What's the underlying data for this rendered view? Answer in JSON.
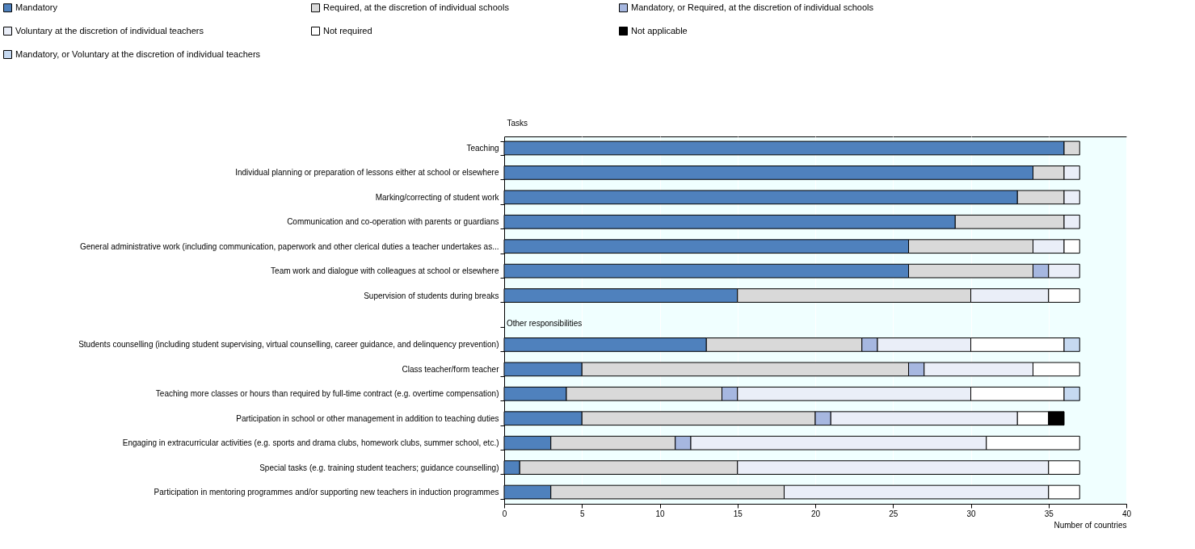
{
  "chart_data": {
    "type": "bar",
    "orientation": "horizontal",
    "stacked": true,
    "categories": [
      "Teaching",
      "Individual planning or preparation of lessons either at school or elsewhere",
      "Marking/correcting of student work",
      "Communication and co-operation with parents or guardians",
      "General administrative work (including communication, paperwork and other clerical duties a teacher undertakes as...",
      "Team work and dialogue with colleagues at school or elsewhere",
      "Supervision of students during breaks",
      null,
      "Students counselling (including student supervising, virtual counselling, career guidance, and delinquency prevention)",
      "Class teacher/form teacher",
      "Teaching more classes or hours than required by full-time contract (e.g. overtime compensation)",
      "Participation in school or other management in addition to teaching duties",
      "Engaging in extracurricular activities (e.g. sports and drama clubs, homework clubs, summer school, etc.)",
      "Special tasks (e.g. training student teachers; guidance counselling)",
      "Participation in mentoring programmes and/or supporting new teachers in induction programmes"
    ],
    "series": [
      {
        "name": "Mandatory",
        "color": "#4f81bd",
        "values": [
          36,
          34,
          33,
          29,
          26,
          26,
          15,
          null,
          13,
          5,
          4,
          5,
          3,
          1,
          3
        ]
      },
      {
        "name": "Required, at the discretion of individual schools",
        "color": "#d9d9d9",
        "values": [
          1,
          2,
          3,
          7,
          8,
          8,
          15,
          null,
          10,
          21,
          10,
          15,
          8,
          14,
          15
        ]
      },
      {
        "name": "Mandatory, or Required, at the discretion of individual schools",
        "color": "#a6b7e0",
        "values": [
          null,
          null,
          null,
          null,
          null,
          1,
          null,
          null,
          1,
          1,
          1,
          1,
          1,
          null,
          null
        ]
      },
      {
        "name": "Voluntary at the discretion of individual teachers",
        "color": "#eaeef8",
        "values": [
          null,
          1,
          1,
          1,
          2,
          2,
          5,
          null,
          6,
          7,
          15,
          12,
          19,
          20,
          17
        ]
      },
      {
        "name": "Not required",
        "color": "#ffffff",
        "values": [
          null,
          null,
          null,
          null,
          1,
          null,
          2,
          null,
          6,
          3,
          6,
          2,
          6,
          2,
          2
        ]
      },
      {
        "name": "Not applicable",
        "color": "#000000",
        "values": [
          null,
          null,
          null,
          null,
          null,
          null,
          null,
          null,
          null,
          null,
          null,
          1,
          null,
          null,
          null
        ]
      },
      {
        "name": "Mandatory, or Voluntary at the discretion of individual teachers",
        "color": "#c6d9f1",
        "values": [
          null,
          null,
          null,
          null,
          null,
          null,
          null,
          null,
          1,
          null,
          1,
          null,
          null,
          null,
          null
        ]
      }
    ],
    "ylabel": "Tasks",
    "xlabel": "Number of countries",
    "annotations": [
      "Other responsibilities"
    ],
    "xlim": [
      0,
      40
    ],
    "xticks": [
      0,
      5,
      10,
      15,
      20,
      25,
      30,
      35,
      40
    ],
    "grid": "x",
    "legend": "top"
  }
}
